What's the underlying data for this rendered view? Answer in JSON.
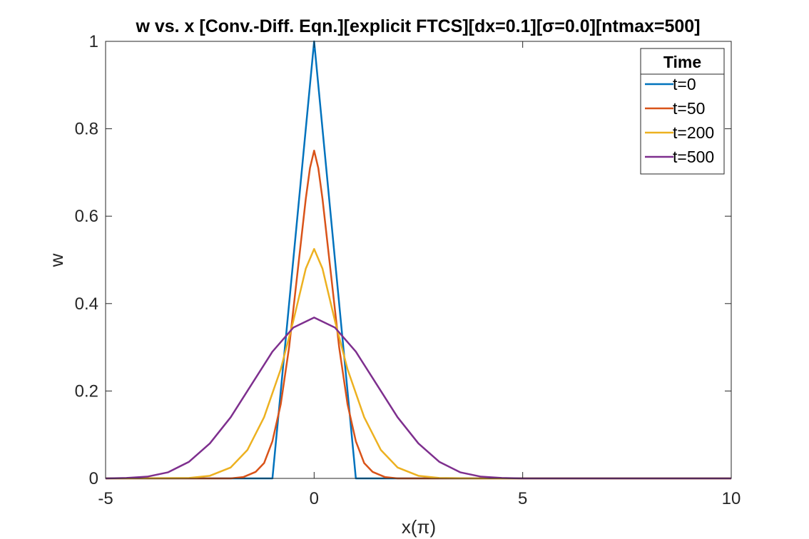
{
  "chart_data": {
    "type": "line",
    "title": "w vs. x [Conv.-Diff. Eqn.][explicit FTCS][dx=0.1][σ=0.0][ntmax=500]",
    "xlabel": "x(π)",
    "ylabel": "w",
    "xlim": [
      -5,
      10
    ],
    "ylim": [
      0,
      1
    ],
    "xticks": [
      "-5",
      "0",
      "5",
      "10"
    ],
    "yticks": [
      "0",
      "0.2",
      "0.4",
      "0.6",
      "0.8",
      "1"
    ],
    "grid": false,
    "legend": {
      "title": "Time",
      "placement": "top-right",
      "entries": [
        "t=0",
        "t=50",
        "t=200",
        "t=500"
      ]
    },
    "series": [
      {
        "name": "t=0",
        "color": "#0072BD",
        "x": [
          -5,
          -1,
          0,
          1,
          10
        ],
        "y": [
          0,
          0,
          1,
          0,
          0
        ]
      },
      {
        "name": "t=50",
        "color": "#D95319",
        "x": [
          -5,
          -2,
          -1.7,
          -1.4,
          -1.2,
          -1.0,
          -0.8,
          -0.6,
          -0.4,
          -0.2,
          -0.1,
          0,
          0.1,
          0.2,
          0.4,
          0.6,
          0.8,
          1.0,
          1.2,
          1.4,
          1.7,
          2,
          10
        ],
        "y": [
          0,
          0,
          0.003,
          0.015,
          0.035,
          0.085,
          0.17,
          0.3,
          0.47,
          0.64,
          0.71,
          0.75,
          0.71,
          0.64,
          0.47,
          0.3,
          0.17,
          0.085,
          0.035,
          0.015,
          0.003,
          0,
          0
        ]
      },
      {
        "name": "t=200",
        "color": "#EDB120",
        "x": [
          -5,
          -3,
          -2.5,
          -2,
          -1.6,
          -1.2,
          -0.8,
          -0.5,
          -0.2,
          0,
          0.2,
          0.5,
          0.8,
          1.2,
          1.6,
          2,
          2.5,
          3,
          3.5,
          4,
          10
        ],
        "y": [
          0,
          0.001,
          0.006,
          0.025,
          0.065,
          0.14,
          0.25,
          0.36,
          0.48,
          0.525,
          0.48,
          0.36,
          0.25,
          0.14,
          0.065,
          0.025,
          0.006,
          0.001,
          0.0005,
          0,
          0
        ]
      },
      {
        "name": "t=500",
        "color": "#7E2F8E",
        "x": [
          -5,
          -4.5,
          -4,
          -3.5,
          -3,
          -2.5,
          -2,
          -1.5,
          -1,
          -0.5,
          0,
          0.5,
          1,
          1.5,
          2,
          2.5,
          3,
          3.5,
          4,
          4.5,
          5,
          10
        ],
        "y": [
          0,
          0.001,
          0.004,
          0.014,
          0.038,
          0.08,
          0.14,
          0.215,
          0.29,
          0.345,
          0.368,
          0.345,
          0.29,
          0.215,
          0.14,
          0.08,
          0.038,
          0.014,
          0.004,
          0.001,
          0,
          0
        ]
      }
    ]
  }
}
